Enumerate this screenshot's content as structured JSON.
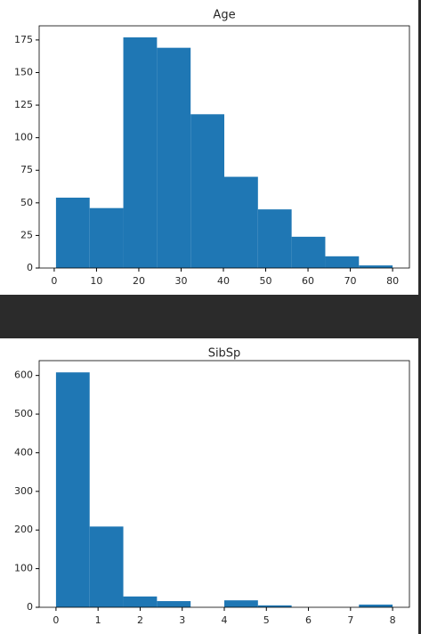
{
  "chart_data": [
    {
      "type": "histogram",
      "title": "Age",
      "bins": [
        0.42,
        8.378,
        16.336,
        24.294,
        32.252,
        40.21,
        48.168,
        56.126,
        64.084,
        72.042,
        80
      ],
      "values": [
        54,
        46,
        177,
        169,
        118,
        70,
        45,
        24,
        9,
        2
      ],
      "color": "#1f77b4",
      "xlim": [
        -3.559,
        83.979
      ],
      "ylim": [
        0,
        185.85
      ],
      "xticks": [
        0,
        10,
        20,
        30,
        40,
        50,
        60,
        70,
        80
      ],
      "yticks": [
        0,
        25,
        50,
        75,
        100,
        125,
        150,
        175
      ]
    },
    {
      "type": "histogram",
      "title": "SibSp",
      "bins": [
        0,
        0.8,
        1.6,
        2.4,
        3.2,
        4,
        4.8,
        5.6,
        6.4,
        7.2,
        8
      ],
      "values": [
        608,
        209,
        28,
        16,
        0,
        18,
        5,
        0,
        0,
        7
      ],
      "color": "#1f77b4",
      "xlim": [
        -0.4,
        8.4
      ],
      "ylim": [
        0,
        638.4
      ],
      "xticks": [
        0,
        1,
        2,
        3,
        4,
        5,
        6,
        7,
        8
      ],
      "yticks": [
        0,
        100,
        200,
        300,
        400,
        500,
        600
      ]
    }
  ]
}
